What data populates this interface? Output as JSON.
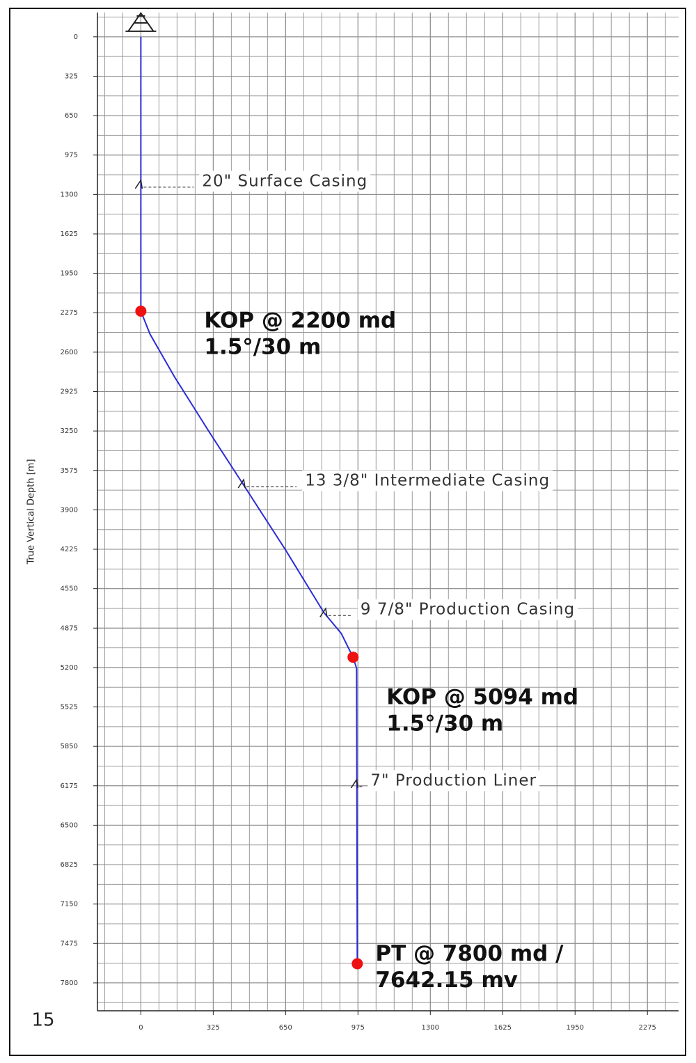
{
  "chart_data": {
    "type": "line",
    "y_label": "True Vertical Depth [m]",
    "page_number": "15",
    "color": "#2b2bd8",
    "x": [
      0,
      0,
      41,
      150,
      306,
      462,
      650,
      822,
      900,
      953,
      969,
      972
    ],
    "values": [
      0,
      2262,
      2451,
      2800,
      3255,
      3697,
      4231,
      4747,
      4919,
      5115,
      5207,
      7642.15
    ],
    "xlim": [
      -195,
      2415
    ],
    "ylim": [
      8030,
      -200
    ],
    "xticks": [
      0,
      325,
      650,
      975,
      1300,
      1625,
      1950,
      2275
    ],
    "yticks": [
      0,
      325,
      650,
      975,
      1300,
      1625,
      1950,
      2275,
      2600,
      2925,
      3250,
      3575,
      3900,
      4225,
      4550,
      4875,
      5200,
      5525,
      5850,
      6175,
      6500,
      6825,
      7150,
      7475,
      7800
    ],
    "grid": true,
    "x_minor_divisions": 4,
    "y_minor_divisions": 2,
    "markers": {
      "color": "#ee1111",
      "x": [
        0,
        953,
        972
      ],
      "y": [
        2262,
        5115,
        7642.15
      ],
      "labels": [
        [
          "KOP @ 2200 md",
          "1.5°/30 m"
        ],
        [
          "KOP @ 5094 md",
          "1.5°/30 m"
        ],
        [
          "PT @ 7800 md /",
          "7642.15 mv"
        ]
      ]
    },
    "casings": [
      {
        "label": "20\" Surface Casing",
        "x": 0,
        "y": 1228
      },
      {
        "label": "13  3/8\" Intermediate Casing",
        "x": 462,
        "y": 3697
      },
      {
        "label": "9  7/8\" Production Casing",
        "x": 830,
        "y": 4760
      },
      {
        "label": "7\" Production Liner",
        "x": 969,
        "y": 6170
      }
    ]
  }
}
